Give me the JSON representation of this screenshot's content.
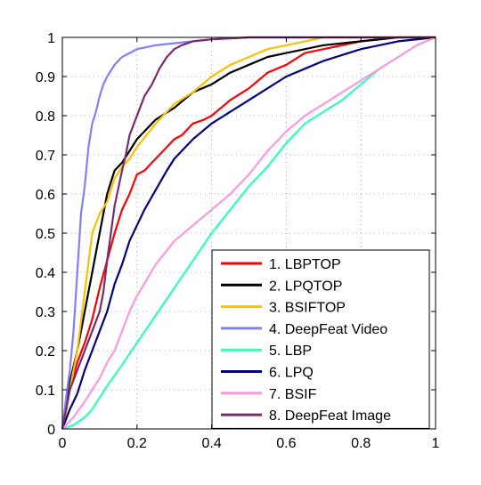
{
  "chart_data": {
    "type": "line",
    "title": "",
    "xlabel": "",
    "ylabel": "",
    "xlim": [
      0,
      1
    ],
    "ylim": [
      0,
      1
    ],
    "xticks": [
      0,
      0.2,
      0.4,
      0.6,
      0.8,
      1
    ],
    "xtick_labels": [
      "0",
      "0.2",
      "0.4",
      "0.6",
      "0.8",
      "1"
    ],
    "yticks": [
      0,
      0.1,
      0.2,
      0.3,
      0.4,
      0.5,
      0.6,
      0.7,
      0.8,
      0.9,
      1
    ],
    "ytick_labels": [
      "0",
      "0.1",
      "0.2",
      "0.3",
      "0.4",
      "0.5",
      "0.6",
      "0.7",
      "0.8",
      "0.9",
      "1"
    ],
    "grid": true,
    "grid_style": "dotted",
    "legend_position": "bottom-right",
    "series": [
      {
        "name": "1. LBPTOP",
        "color": "#ff0000",
        "x": [
          0,
          0.01,
          0.02,
          0.04,
          0.06,
          0.08,
          0.1,
          0.12,
          0.14,
          0.16,
          0.18,
          0.2,
          0.22,
          0.25,
          0.28,
          0.3,
          0.32,
          0.35,
          0.38,
          0.4,
          0.45,
          0.5,
          0.55,
          0.6,
          0.65,
          0.7,
          0.8,
          0.9,
          1.0
        ],
        "y": [
          0,
          0.05,
          0.1,
          0.17,
          0.22,
          0.28,
          0.36,
          0.43,
          0.5,
          0.56,
          0.6,
          0.65,
          0.66,
          0.69,
          0.72,
          0.74,
          0.75,
          0.78,
          0.79,
          0.8,
          0.84,
          0.87,
          0.91,
          0.93,
          0.96,
          0.97,
          0.99,
          1.0,
          1.0
        ]
      },
      {
        "name": "2. LPQTOP",
        "color": "#000000",
        "x": [
          0,
          0.01,
          0.02,
          0.04,
          0.06,
          0.08,
          0.1,
          0.12,
          0.14,
          0.16,
          0.18,
          0.2,
          0.25,
          0.3,
          0.35,
          0.4,
          0.45,
          0.5,
          0.55,
          0.6,
          0.7,
          0.8,
          0.9,
          1.0
        ],
        "y": [
          0,
          0.07,
          0.12,
          0.2,
          0.3,
          0.4,
          0.5,
          0.6,
          0.66,
          0.68,
          0.71,
          0.74,
          0.79,
          0.82,
          0.86,
          0.88,
          0.91,
          0.93,
          0.95,
          0.96,
          0.98,
          0.99,
          1.0,
          1.0
        ]
      },
      {
        "name": "3. BSIFTOP",
        "color": "#ffc000",
        "x": [
          0,
          0.01,
          0.02,
          0.04,
          0.06,
          0.08,
          0.1,
          0.12,
          0.14,
          0.16,
          0.18,
          0.2,
          0.25,
          0.3,
          0.35,
          0.4,
          0.45,
          0.5,
          0.55,
          0.6,
          0.65,
          0.7,
          0.8,
          0.9,
          1.0
        ],
        "y": [
          0,
          0.04,
          0.1,
          0.2,
          0.35,
          0.5,
          0.55,
          0.58,
          0.64,
          0.67,
          0.69,
          0.72,
          0.78,
          0.83,
          0.86,
          0.9,
          0.93,
          0.95,
          0.97,
          0.98,
          0.99,
          1.0,
          1.0,
          1.0,
          1.0
        ]
      },
      {
        "name": "4. DeepFeat Video",
        "color": "#8080ff",
        "x": [
          0,
          0.01,
          0.02,
          0.03,
          0.04,
          0.05,
          0.06,
          0.07,
          0.08,
          0.09,
          0.1,
          0.11,
          0.12,
          0.14,
          0.16,
          0.18,
          0.2,
          0.25,
          0.3,
          0.35,
          0.4,
          0.5,
          0.6,
          1.0
        ],
        "y": [
          0,
          0.08,
          0.15,
          0.25,
          0.4,
          0.55,
          0.62,
          0.72,
          0.78,
          0.81,
          0.85,
          0.88,
          0.9,
          0.93,
          0.95,
          0.96,
          0.97,
          0.98,
          0.985,
          0.99,
          0.995,
          1.0,
          1.0,
          1.0
        ]
      },
      {
        "name": "5. LBP",
        "color": "#33ffbb",
        "x": [
          0,
          0.03,
          0.06,
          0.08,
          0.1,
          0.12,
          0.15,
          0.2,
          0.25,
          0.3,
          0.35,
          0.4,
          0.45,
          0.5,
          0.55,
          0.6,
          0.65,
          0.7,
          0.75,
          0.8,
          0.85,
          0.9,
          0.95,
          1.0
        ],
        "y": [
          0,
          0.01,
          0.03,
          0.05,
          0.08,
          0.11,
          0.15,
          0.22,
          0.29,
          0.36,
          0.43,
          0.5,
          0.56,
          0.62,
          0.67,
          0.73,
          0.78,
          0.81,
          0.84,
          0.88,
          0.92,
          0.95,
          0.98,
          1.0
        ]
      },
      {
        "name": "6. LPQ",
        "color": "#000080",
        "x": [
          0,
          0.02,
          0.04,
          0.06,
          0.08,
          0.1,
          0.12,
          0.14,
          0.16,
          0.18,
          0.2,
          0.22,
          0.25,
          0.28,
          0.3,
          0.35,
          0.4,
          0.45,
          0.5,
          0.55,
          0.6,
          0.65,
          0.7,
          0.8,
          0.9,
          1.0
        ],
        "y": [
          0,
          0.05,
          0.09,
          0.15,
          0.2,
          0.25,
          0.3,
          0.37,
          0.42,
          0.48,
          0.52,
          0.56,
          0.61,
          0.66,
          0.69,
          0.74,
          0.78,
          0.81,
          0.84,
          0.87,
          0.9,
          0.92,
          0.94,
          0.97,
          0.99,
          1.0
        ]
      },
      {
        "name": "7. BSIF",
        "color": "#ff99dd",
        "x": [
          0,
          0.03,
          0.06,
          0.08,
          0.1,
          0.12,
          0.14,
          0.16,
          0.18,
          0.2,
          0.25,
          0.3,
          0.35,
          0.4,
          0.45,
          0.5,
          0.55,
          0.6,
          0.65,
          0.7,
          0.75,
          0.8,
          0.85,
          0.9,
          0.95,
          1.0
        ],
        "y": [
          0,
          0.03,
          0.07,
          0.1,
          0.13,
          0.17,
          0.2,
          0.25,
          0.3,
          0.34,
          0.42,
          0.48,
          0.52,
          0.56,
          0.6,
          0.65,
          0.71,
          0.76,
          0.8,
          0.83,
          0.86,
          0.89,
          0.92,
          0.95,
          0.98,
          1.0
        ]
      },
      {
        "name": "8. DeepFeat Image",
        "color": "#7a2a6e",
        "x": [
          0,
          0.01,
          0.02,
          0.04,
          0.06,
          0.08,
          0.1,
          0.11,
          0.12,
          0.14,
          0.16,
          0.17,
          0.18,
          0.2,
          0.22,
          0.24,
          0.26,
          0.28,
          0.3,
          0.32,
          0.35,
          0.4,
          0.5,
          0.6,
          1.0
        ],
        "y": [
          0,
          0.05,
          0.1,
          0.15,
          0.2,
          0.25,
          0.3,
          0.35,
          0.43,
          0.57,
          0.66,
          0.7,
          0.75,
          0.8,
          0.85,
          0.88,
          0.92,
          0.95,
          0.97,
          0.98,
          0.99,
          0.995,
          1.0,
          1.0,
          1.0
        ]
      }
    ]
  }
}
